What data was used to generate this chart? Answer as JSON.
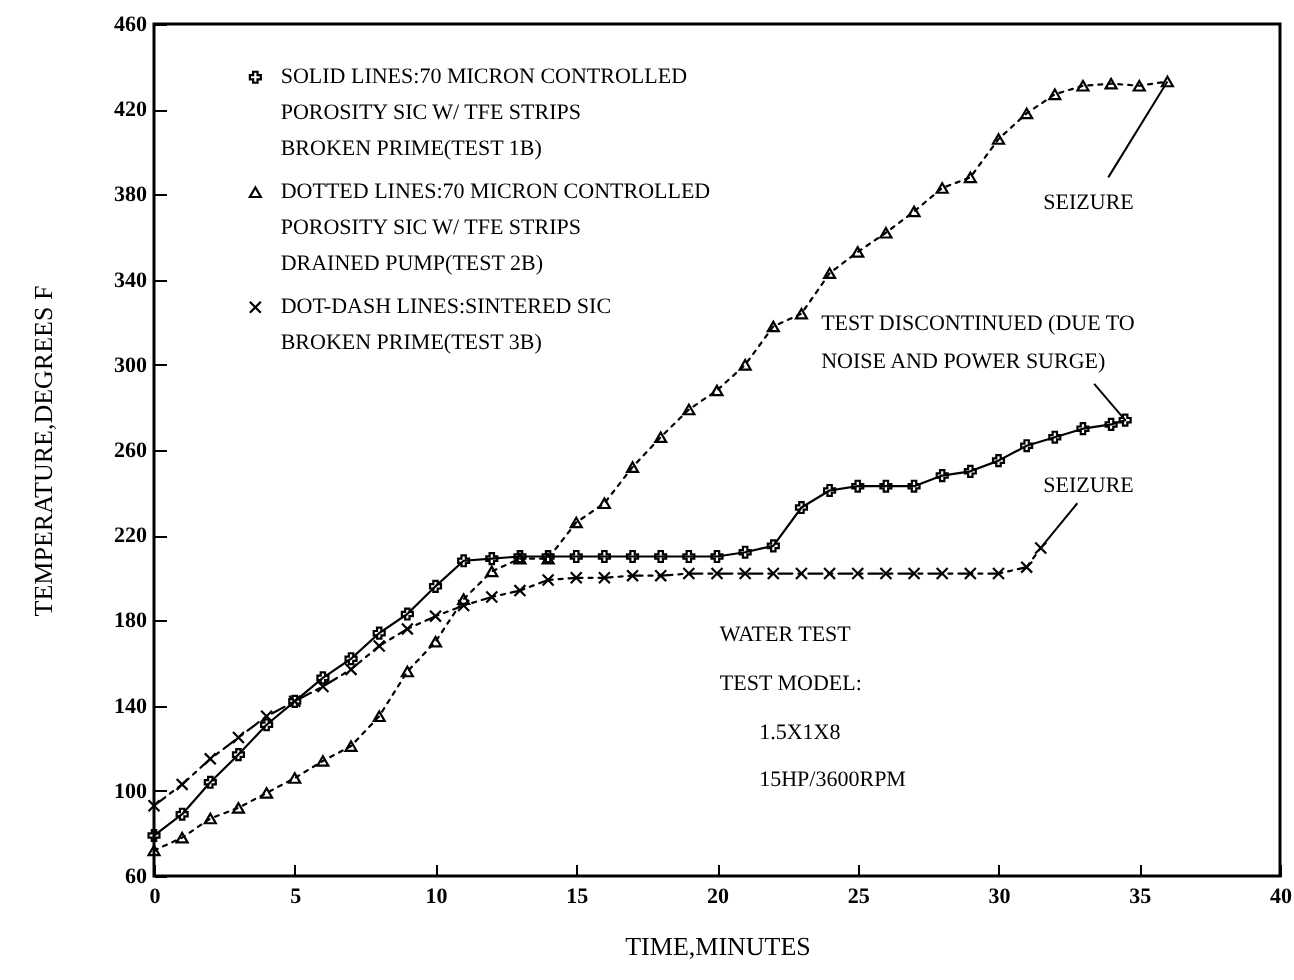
{
  "chart_data": {
    "type": "line",
    "xlabel": "TIME,MINUTES",
    "ylabel": "TEMPERATURE,DEGREES F",
    "xlim": [
      0,
      40
    ],
    "xticks": [
      0,
      5,
      10,
      15,
      20,
      25,
      30,
      35,
      40
    ],
    "ylim": [
      60,
      460
    ],
    "yticks": [
      60,
      100,
      140,
      180,
      220,
      260,
      300,
      340,
      380,
      420,
      460
    ],
    "grid": false,
    "legend": "top left",
    "series": [
      {
        "name": "SOLID LINES:70 MICRON CONTROLLED\nPOROSITY SIC W/ TFE STRIPS\nBROKEN PRIME(TEST 1B)",
        "color": "#000000",
        "marker": "cross",
        "line_style": "solid",
        "x": [
          0,
          1,
          2,
          3,
          4,
          5,
          6,
          7,
          8,
          9,
          10,
          11,
          12,
          13,
          14,
          15,
          16,
          17,
          18,
          19,
          20,
          21,
          22,
          23,
          24,
          25,
          26,
          27,
          28,
          29,
          30,
          31,
          32,
          33,
          34,
          34.5
        ],
        "values": [
          79,
          89,
          104,
          117,
          131,
          142,
          153,
          162,
          174,
          183,
          196,
          208,
          209,
          210,
          210,
          210,
          210,
          210,
          210,
          210,
          210,
          212,
          215,
          233,
          241,
          243,
          243,
          243,
          248,
          250,
          255,
          262,
          266,
          270,
          272,
          274
        ]
      },
      {
        "name": "DOTTED LINES:70 MICRON CONTROLLED\nPOROSITY SIC W/ TFE STRIPS\nDRAINED PUMP(TEST 2B)",
        "color": "#000000",
        "marker": "triangle",
        "line_style": "dotted",
        "x": [
          0,
          1,
          2,
          3,
          4,
          5,
          6,
          7,
          8,
          9,
          10,
          11,
          12,
          13,
          14,
          15,
          16,
          17,
          18,
          19,
          20,
          21,
          22,
          23,
          24,
          25,
          26,
          27,
          28,
          29,
          30,
          31,
          32,
          33,
          34,
          35,
          36
        ],
        "values": [
          72,
          78,
          87,
          92,
          99,
          106,
          114,
          121,
          135,
          156,
          170,
          190,
          203,
          209,
          209,
          226,
          235,
          252,
          266,
          279,
          288,
          300,
          318,
          324,
          343,
          353,
          362,
          372,
          383,
          388,
          406,
          418,
          427,
          431,
          432,
          431,
          433
        ]
      },
      {
        "name": "DOT-DASH LINES:SINTERED SIC\nBROKEN PRIME(TEST 3B)",
        "color": "#000000",
        "marker": "x",
        "line_style": "dashed",
        "x": [
          0,
          1,
          2,
          3,
          4,
          5,
          6,
          7,
          8,
          9,
          10,
          11,
          12,
          13,
          14,
          15,
          16,
          17,
          18,
          19,
          20,
          21,
          22,
          23,
          24,
          25,
          26,
          27,
          28,
          29,
          30,
          31,
          31.5
        ],
        "values": [
          93,
          103,
          115,
          125,
          135,
          142,
          149,
          157,
          168,
          176,
          182,
          187,
          191,
          194,
          199,
          200,
          200,
          201,
          201,
          202,
          202,
          202,
          202,
          202,
          202,
          202,
          202,
          202,
          202,
          202,
          202,
          205,
          214
        ]
      }
    ],
    "annotations": [
      {
        "text": "SEIZURE",
        "x": 36,
        "y": 433
      },
      {
        "text": "TEST DISCONTINUED (DUE TO\nNOISE AND POWER SURGE)",
        "x": 34.5,
        "y": 274
      },
      {
        "text": "SEIZURE",
        "x": 31.5,
        "y": 214
      },
      "WATER TEST",
      "TEST MODEL:",
      "1.5X1X8",
      "15HP/3600RPM"
    ]
  }
}
